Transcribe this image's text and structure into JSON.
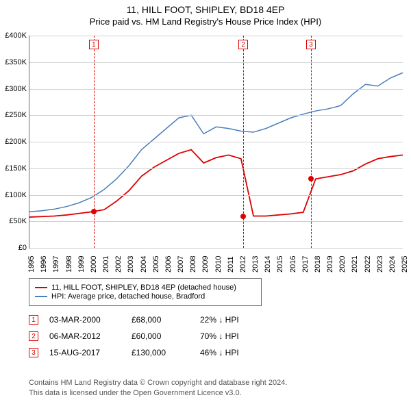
{
  "title": "11, HILL FOOT, SHIPLEY, BD18 4EP",
  "subtitle": "Price paid vs. HM Land Registry's House Price Index (HPI)",
  "chart": {
    "type": "line",
    "x_years": [
      1995,
      1996,
      1997,
      1998,
      1999,
      2000,
      2001,
      2002,
      2003,
      2004,
      2005,
      2006,
      2007,
      2008,
      2009,
      2010,
      2011,
      2012,
      2013,
      2014,
      2015,
      2016,
      2017,
      2018,
      2019,
      2020,
      2021,
      2022,
      2023,
      2024,
      2025
    ],
    "ylim": [
      0,
      400000
    ],
    "ytick_step": 50000,
    "ytick_labels": [
      "£0",
      "£50K",
      "£100K",
      "£150K",
      "£200K",
      "£250K",
      "£300K",
      "£350K",
      "£400K"
    ],
    "grid_color": "#d0d0d0",
    "background_color": "#ffffff",
    "axis_color": "#666666",
    "series": [
      {
        "name": "11, HILL FOOT, SHIPLEY, BD18 4EP (detached house)",
        "color": "#dd0000",
        "width": 1.8,
        "markers": [
          {
            "year": 2000.17,
            "value": 68000
          },
          {
            "year": 2012.18,
            "value": 60000
          },
          {
            "year": 2017.62,
            "value": 130000
          }
        ],
        "values": [
          58000,
          59000,
          60000,
          62000,
          65000,
          68000,
          72000,
          88000,
          108000,
          135000,
          152000,
          165000,
          178000,
          185000,
          160000,
          170000,
          175000,
          168000,
          60000,
          60000,
          62000,
          64000,
          67000,
          130000,
          134000,
          138000,
          145000,
          158000,
          168000,
          172000,
          175000
        ]
      },
      {
        "name": "HPI: Average price, detached house, Bradford",
        "color": "#4a7ebb",
        "width": 1.5,
        "values": [
          68000,
          70000,
          73000,
          78000,
          85000,
          95000,
          110000,
          130000,
          155000,
          185000,
          205000,
          225000,
          245000,
          250000,
          215000,
          228000,
          225000,
          220000,
          218000,
          225000,
          235000,
          245000,
          252000,
          258000,
          262000,
          268000,
          290000,
          308000,
          305000,
          320000,
          330000
        ]
      }
    ],
    "sale_markers": [
      {
        "n": "1",
        "year": 2000.17,
        "color": "#dd0000"
      },
      {
        "n": "2",
        "year": 2012.18,
        "color": "#dd0000"
      },
      {
        "n": "3",
        "year": 2017.62,
        "color": "#dd0000"
      }
    ]
  },
  "legend": [
    {
      "color": "#dd0000",
      "label": "11, HILL FOOT, SHIPLEY, BD18 4EP (detached house)"
    },
    {
      "color": "#4a7ebb",
      "label": "HPI: Average price, detached house, Bradford"
    }
  ],
  "sales": [
    {
      "n": "1",
      "color": "#dd0000",
      "date": "03-MAR-2000",
      "price": "£68,000",
      "delta": "22% ↓ HPI"
    },
    {
      "n": "2",
      "color": "#dd0000",
      "date": "06-MAR-2012",
      "price": "£60,000",
      "delta": "70% ↓ HPI"
    },
    {
      "n": "3",
      "color": "#dd0000",
      "date": "15-AUG-2017",
      "price": "£130,000",
      "delta": "46% ↓ HPI"
    }
  ],
  "notes": [
    "Contains HM Land Registry data © Crown copyright and database right 2024.",
    "This data is licensed under the Open Government Licence v3.0."
  ]
}
